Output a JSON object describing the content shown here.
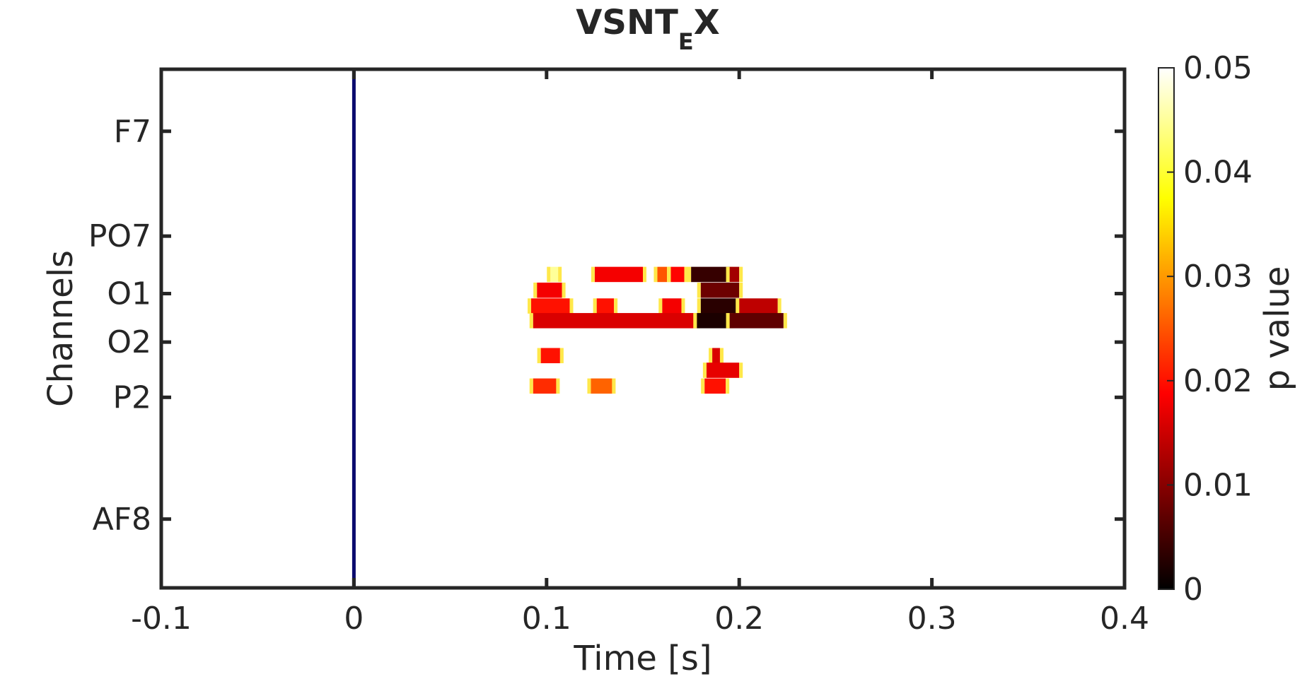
{
  "chart_data": {
    "type": "heatmap",
    "title": "VSNT",
    "title_subscript": "E",
    "title_suffix": "X",
    "xlabel": "Time [s]",
    "ylabel": "Channels",
    "xlim": [
      -0.1,
      0.4
    ],
    "x_ticks": [
      -0.1,
      0,
      0.1,
      0.2,
      0.3,
      0.4
    ],
    "x_tick_labels": [
      "-0.1",
      "0",
      "0.1",
      "0.2",
      "0.3",
      "0.4"
    ],
    "y_tick_labels": [
      "F7",
      "PO7",
      "O1",
      "O2",
      "P2",
      "AF8"
    ],
    "y_tick_rows": [
      5.5,
      14.8,
      19.9,
      24.2,
      29.1,
      39.9
    ],
    "n_rows": 46,
    "event_line_x": 0,
    "event_line_color": "#0a0a6e",
    "colorbar": {
      "label": "p value",
      "ticks": [
        0,
        0.01,
        0.02,
        0.03,
        0.04,
        0.05
      ],
      "tick_labels": [
        "0",
        "0.01",
        "0.02",
        "0.03",
        "0.04",
        "0.05"
      ],
      "range": [
        0,
        0.05
      ],
      "colormap": "hot"
    },
    "grid": false,
    "clusters": [
      {
        "row": 18.2,
        "t_start": 0.102,
        "t_end": 0.106,
        "p": 0.045
      },
      {
        "row": 18.2,
        "t_start": 0.125,
        "t_end": 0.15,
        "p": 0.018
      },
      {
        "row": 18.2,
        "t_start": 0.1575,
        "t_end": 0.1625,
        "p": 0.025
      },
      {
        "row": 18.2,
        "t_start": 0.1645,
        "t_end": 0.1715,
        "p": 0.019
      },
      {
        "row": 18.2,
        "t_start": 0.175,
        "t_end": 0.195,
        "p": 0.004
      },
      {
        "row": 18.2,
        "t_start": 0.195,
        "t_end": 0.2,
        "p": 0.012
      },
      {
        "row": 19.6,
        "t_start": 0.095,
        "t_end": 0.108,
        "p": 0.018
      },
      {
        "row": 19.6,
        "t_start": 0.18,
        "t_end": 0.2,
        "p": 0.008
      },
      {
        "row": 21.0,
        "t_start": 0.092,
        "t_end": 0.112,
        "p": 0.02
      },
      {
        "row": 21.0,
        "t_start": 0.126,
        "t_end": 0.135,
        "p": 0.02
      },
      {
        "row": 21.0,
        "t_start": 0.16,
        "t_end": 0.17,
        "p": 0.018
      },
      {
        "row": 21.0,
        "t_start": 0.18,
        "t_end": 0.2,
        "p": 0.003
      },
      {
        "row": 21.0,
        "t_start": 0.2,
        "t_end": 0.22,
        "p": 0.014
      },
      {
        "row": 22.3,
        "t_start": 0.093,
        "t_end": 0.178,
        "p": 0.016
      },
      {
        "row": 22.3,
        "t_start": 0.178,
        "t_end": 0.195,
        "p": 0.002
      },
      {
        "row": 22.3,
        "t_start": 0.195,
        "t_end": 0.223,
        "p": 0.007
      },
      {
        "row": 25.4,
        "t_start": 0.097,
        "t_end": 0.107,
        "p": 0.02
      },
      {
        "row": 25.4,
        "t_start": 0.186,
        "t_end": 0.19,
        "p": 0.016
      },
      {
        "row": 26.7,
        "t_start": 0.183,
        "t_end": 0.2,
        "p": 0.017
      },
      {
        "row": 28.1,
        "t_start": 0.093,
        "t_end": 0.105,
        "p": 0.022
      },
      {
        "row": 28.1,
        "t_start": 0.123,
        "t_end": 0.134,
        "p": 0.026
      },
      {
        "row": 28.1,
        "t_start": 0.182,
        "t_end": 0.193,
        "p": 0.02
      }
    ]
  }
}
